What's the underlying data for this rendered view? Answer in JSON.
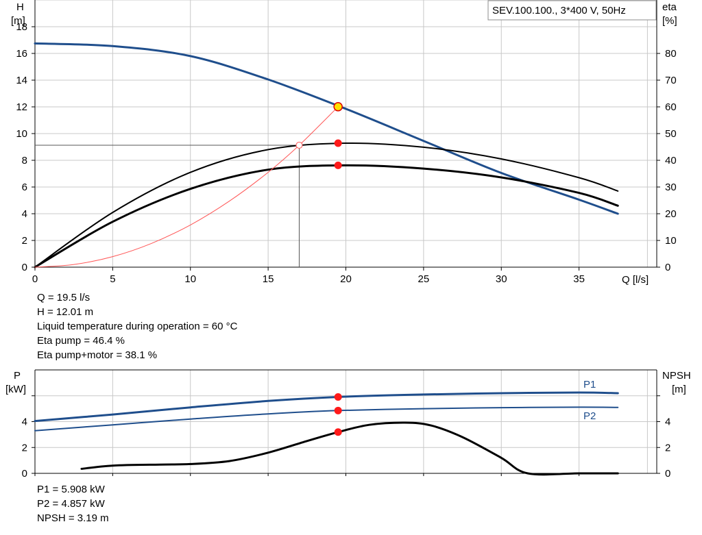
{
  "chart_data": [
    {
      "type": "line",
      "title": "SEV.100.100., 3*400 V, 50Hz",
      "xlabel": "Q [l/s]",
      "ylabel_left": [
        "H",
        "[m]"
      ],
      "ylabel_right": [
        "eta",
        "[%]"
      ],
      "xlim": [
        0,
        40
      ],
      "ylim_left": [
        0,
        20
      ],
      "ylim_right": [
        0,
        100
      ],
      "x_ticks": [
        0,
        5,
        10,
        15,
        20,
        25,
        30,
        35
      ],
      "y_ticks_left": [
        0,
        2,
        4,
        6,
        8,
        10,
        12,
        14,
        16,
        18
      ],
      "y_ticks_right": [
        0,
        10,
        20,
        30,
        40,
        50,
        60,
        70,
        80
      ],
      "grid": true,
      "series": [
        {
          "axis": "left",
          "color": "#1f4e8c",
          "x": [
            0,
            5,
            10,
            15,
            20,
            25,
            30,
            35,
            37.5
          ],
          "y": [
            16.75,
            16.55,
            15.8,
            14.05,
            11.85,
            9.45,
            7.05,
            5.05,
            4.0
          ]
        },
        {
          "axis": "right",
          "color": "#000000",
          "x": [
            0,
            5,
            10,
            15,
            20,
            25,
            30,
            35,
            37.5
          ],
          "y": [
            0,
            20.5,
            35.5,
            44.0,
            46.4,
            44.9,
            40.5,
            33.5,
            28.5
          ]
        },
        {
          "axis": "right",
          "color": "#000000",
          "x": [
            0,
            5,
            10,
            15,
            20,
            25,
            30,
            35,
            37.5
          ],
          "y": [
            0,
            17.0,
            29.3,
            36.5,
            38.1,
            36.9,
            33.6,
            27.8,
            23.0
          ]
        },
        {
          "axis": "left",
          "color": "#ff5555",
          "x": [
            0,
            2.5,
            5,
            7.5,
            10,
            12.5,
            15,
            17,
            19.5
          ],
          "y": [
            0,
            0.2,
            0.79,
            1.78,
            3.16,
            4.94,
            7.1,
            9.13,
            12.01
          ]
        }
      ],
      "operating_point": {
        "x": 19.5,
        "y": 12.01,
        "eta_pump": 46.4,
        "eta_pump_motor": 38.1
      },
      "reference_point": {
        "x": 17.0,
        "y": 9.13
      }
    },
    {
      "type": "line",
      "ylabel_left": [
        "P",
        "[kW]"
      ],
      "ylabel_right": [
        "NPSH",
        "[m]"
      ],
      "xlim": [
        0,
        40
      ],
      "ylim_left": [
        0,
        8
      ],
      "ylim_right": [
        0,
        8
      ],
      "x_ticks": [
        0,
        5,
        10,
        15,
        20,
        25,
        30,
        35
      ],
      "y_ticks_left": [
        0,
        2,
        4
      ],
      "y_ticks_right": [
        0,
        2,
        4
      ],
      "grid": true,
      "series": [
        {
          "name": "P1",
          "axis": "left",
          "color": "#1f4e8c",
          "x": [
            0,
            5,
            10,
            15,
            19.5,
            25,
            30,
            35,
            37.5
          ],
          "y": [
            4.05,
            4.55,
            5.1,
            5.6,
            5.908,
            6.1,
            6.2,
            6.25,
            6.2
          ]
        },
        {
          "name": "P2",
          "axis": "left",
          "color": "#1f4e8c",
          "x": [
            0,
            5,
            10,
            15,
            19.5,
            25,
            30,
            35,
            37.5
          ],
          "y": [
            3.3,
            3.75,
            4.2,
            4.6,
            4.857,
            5.0,
            5.08,
            5.12,
            5.1
          ]
        },
        {
          "axis": "right",
          "color": "#000000",
          "x": [
            3,
            5,
            8,
            10,
            12.5,
            15,
            17.5,
            19.5,
            21.5,
            23.8,
            25.5,
            27.5,
            30,
            31.7,
            35,
            37.5
          ],
          "y": [
            0.35,
            0.6,
            0.68,
            0.72,
            0.95,
            1.6,
            2.5,
            3.19,
            3.75,
            3.92,
            3.7,
            2.8,
            1.2,
            0,
            0,
            0
          ]
        }
      ],
      "operating_point": {
        "x": 19.5,
        "p1": 5.908,
        "p2": 4.857,
        "npsh": 3.19
      }
    }
  ],
  "info_top": [
    "Q = 19.5 l/s",
    "H = 12.01 m",
    "Liquid temperature during operation = 60 °C",
    "Eta pump = 46.4 %",
    "Eta pump+motor = 38.1 %"
  ],
  "info_bottom": [
    "P1 = 5.908 kW",
    "P2 = 4.857 kW",
    "NPSH = 3.19 m"
  ]
}
